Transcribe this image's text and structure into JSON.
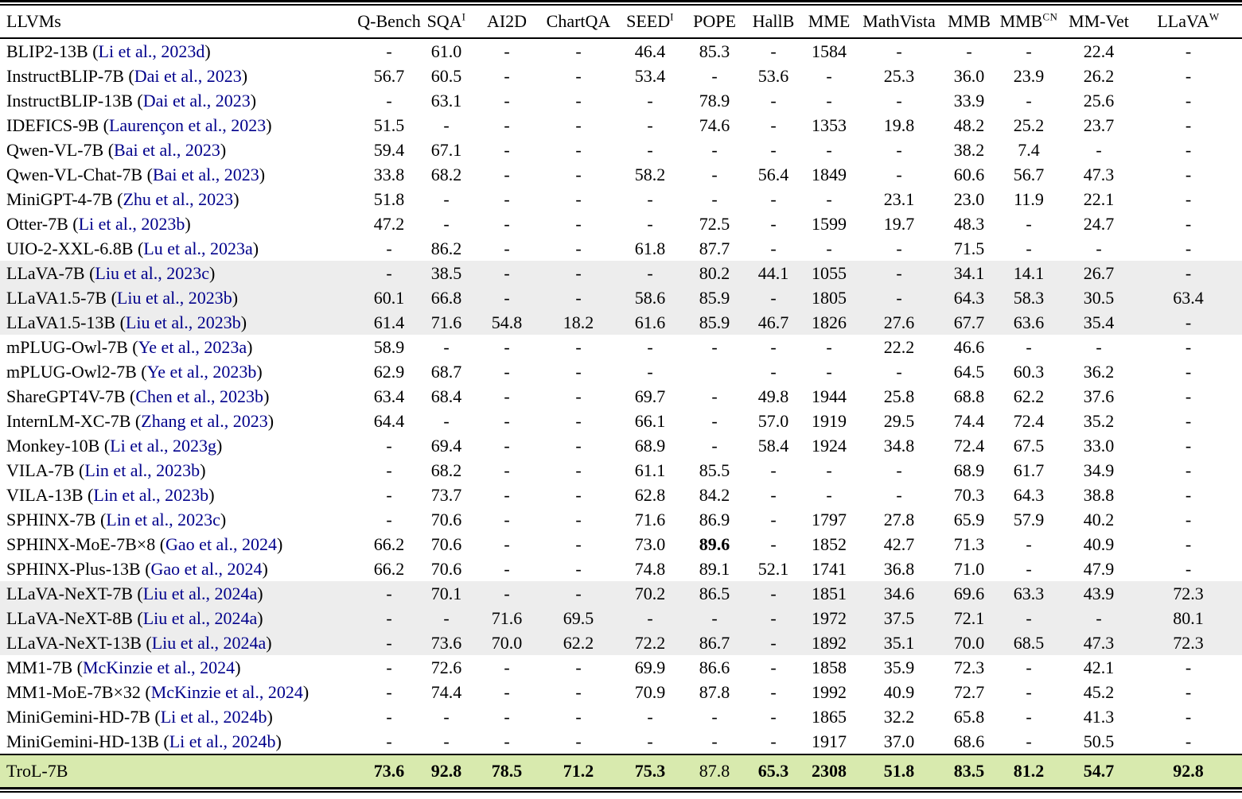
{
  "colors": {
    "citation_link": "#00008B",
    "gray_row": "#ededed",
    "green_row": "#d8eaae"
  },
  "table": {
    "columns": [
      {
        "key": "llvms",
        "label": "LLVMs",
        "sup": ""
      },
      {
        "key": "qbench",
        "label": "Q-Bench",
        "sup": ""
      },
      {
        "key": "sqa",
        "label": "SQA",
        "sup": "I"
      },
      {
        "key": "ai2d",
        "label": "AI2D",
        "sup": ""
      },
      {
        "key": "chartqa",
        "label": "ChartQA",
        "sup": ""
      },
      {
        "key": "seed",
        "label": "SEED",
        "sup": "I"
      },
      {
        "key": "pope",
        "label": "POPE",
        "sup": ""
      },
      {
        "key": "hallb",
        "label": "HallB",
        "sup": ""
      },
      {
        "key": "mme",
        "label": "MME",
        "sup": ""
      },
      {
        "key": "mathvista",
        "label": "MathVista",
        "sup": ""
      },
      {
        "key": "mmb",
        "label": "MMB",
        "sup": ""
      },
      {
        "key": "mmbcn",
        "label": "MMB",
        "sup": "CN"
      },
      {
        "key": "mmvet",
        "label": "MM-Vet",
        "sup": ""
      },
      {
        "key": "llavaw",
        "label": "LLaVA",
        "sup": "W"
      }
    ],
    "rows": [
      {
        "model": "BLIP2-13B",
        "cite": "Li et al., 2023d",
        "shade": "",
        "values": [
          "-",
          "61.0",
          "-",
          "-",
          "46.4",
          "85.3",
          "-",
          "1584",
          "-",
          "-",
          "-",
          "22.4",
          "-"
        ],
        "bold": []
      },
      {
        "model": "InstructBLIP-7B",
        "cite": "Dai et al., 2023",
        "shade": "",
        "values": [
          "56.7",
          "60.5",
          "-",
          "-",
          "53.4",
          "-",
          "53.6",
          "-",
          "25.3",
          "36.0",
          "23.9",
          "26.2",
          "-"
        ],
        "bold": []
      },
      {
        "model": "InstructBLIP-13B",
        "cite": "Dai et al., 2023",
        "shade": "",
        "values": [
          "-",
          "63.1",
          "-",
          "-",
          "-",
          "78.9",
          "-",
          "-",
          "-",
          "33.9",
          "-",
          "25.6",
          "-"
        ],
        "bold": []
      },
      {
        "model": "IDEFICS-9B",
        "cite": "Laurençon et al., 2023",
        "shade": "",
        "values": [
          "51.5",
          "-",
          "-",
          "-",
          "-",
          "74.6",
          "-",
          "1353",
          "19.8",
          "48.2",
          "25.2",
          "23.7",
          "-"
        ],
        "bold": []
      },
      {
        "model": "Qwen-VL-7B",
        "cite": "Bai et al., 2023",
        "shade": "",
        "values": [
          "59.4",
          "67.1",
          "-",
          "-",
          "-",
          "-",
          "-",
          "-",
          "-",
          "38.2",
          "7.4",
          "-",
          "-"
        ],
        "bold": []
      },
      {
        "model": "Qwen-VL-Chat-7B",
        "cite": "Bai et al., 2023",
        "shade": "",
        "values": [
          "33.8",
          "68.2",
          "-",
          "-",
          "58.2",
          "-",
          "56.4",
          "1849",
          "-",
          "60.6",
          "56.7",
          "47.3",
          "-"
        ],
        "bold": []
      },
      {
        "model": "MiniGPT-4-7B",
        "cite": "Zhu et al., 2023",
        "shade": "",
        "values": [
          "51.8",
          "-",
          "-",
          "-",
          "-",
          "-",
          "-",
          "-",
          "23.1",
          "23.0",
          "11.9",
          "22.1",
          "-"
        ],
        "bold": []
      },
      {
        "model": "Otter-7B",
        "cite": "Li et al., 2023b",
        "shade": "",
        "values": [
          "47.2",
          "-",
          "-",
          "-",
          "-",
          "72.5",
          "-",
          "1599",
          "19.7",
          "48.3",
          "-",
          "24.7",
          "-"
        ],
        "bold": []
      },
      {
        "model": "UIO-2-XXL-6.8B",
        "cite": "Lu et al., 2023a",
        "shade": "",
        "values": [
          "-",
          "86.2",
          "-",
          "-",
          "61.8",
          "87.7",
          "-",
          "-",
          "-",
          "71.5",
          "-",
          "-",
          "-"
        ],
        "bold": []
      },
      {
        "model": "LLaVA-7B",
        "cite": "Liu et al., 2023c",
        "shade": "gray",
        "values": [
          "-",
          "38.5",
          "-",
          "-",
          "-",
          "80.2",
          "44.1",
          "1055",
          "-",
          "34.1",
          "14.1",
          "26.7",
          "-"
        ],
        "bold": []
      },
      {
        "model": "LLaVA1.5-7B",
        "cite": "Liu et al., 2023b",
        "shade": "gray",
        "values": [
          "60.1",
          "66.8",
          "-",
          "-",
          "58.6",
          "85.9",
          "-",
          "1805",
          "-",
          "64.3",
          "58.3",
          "30.5",
          "63.4"
        ],
        "bold": []
      },
      {
        "model": "LLaVA1.5-13B",
        "cite": "Liu et al., 2023b",
        "shade": "gray",
        "values": [
          "61.4",
          "71.6",
          "54.8",
          "18.2",
          "61.6",
          "85.9",
          "46.7",
          "1826",
          "27.6",
          "67.7",
          "63.6",
          "35.4",
          "-"
        ],
        "bold": []
      },
      {
        "model": "mPLUG-Owl-7B",
        "cite": "Ye et al., 2023a",
        "shade": "",
        "values": [
          "58.9",
          "-",
          "-",
          "-",
          "-",
          "-",
          "-",
          "-",
          "22.2",
          "46.6",
          "-",
          "-",
          "-"
        ],
        "bold": []
      },
      {
        "model": "mPLUG-Owl2-7B",
        "cite": "Ye et al., 2023b",
        "shade": "",
        "values": [
          "62.9",
          "68.7",
          "-",
          "-",
          "-",
          "",
          "-",
          "-",
          "-",
          "64.5",
          "60.3",
          "36.2",
          "-"
        ],
        "bold": []
      },
      {
        "model": "ShareGPT4V-7B",
        "cite": "Chen et al., 2023b",
        "shade": "",
        "values": [
          "63.4",
          "68.4",
          "-",
          "-",
          "69.7",
          "-",
          "49.8",
          "1944",
          "25.8",
          "68.8",
          "62.2",
          "37.6",
          "-"
        ],
        "bold": []
      },
      {
        "model": "InternLM-XC-7B",
        "cite": "Zhang et al., 2023",
        "shade": "",
        "values": [
          "64.4",
          "-",
          "-",
          "-",
          "66.1",
          "-",
          "57.0",
          "1919",
          "29.5",
          "74.4",
          "72.4",
          "35.2",
          "-"
        ],
        "bold": []
      },
      {
        "model": "Monkey-10B",
        "cite": "Li et al., 2023g",
        "shade": "",
        "values": [
          "-",
          "69.4",
          "-",
          "-",
          "68.9",
          "-",
          "58.4",
          "1924",
          "34.8",
          "72.4",
          "67.5",
          "33.0",
          "-"
        ],
        "bold": []
      },
      {
        "model": "VILA-7B",
        "cite": "Lin et al., 2023b",
        "shade": "",
        "values": [
          "-",
          "68.2",
          "-",
          "-",
          "61.1",
          "85.5",
          "-",
          "-",
          "-",
          "68.9",
          "61.7",
          "34.9",
          "-"
        ],
        "bold": []
      },
      {
        "model": "VILA-13B",
        "cite": "Lin et al., 2023b",
        "shade": "",
        "values": [
          "-",
          "73.7",
          "-",
          "-",
          "62.8",
          "84.2",
          "-",
          "-",
          "-",
          "70.3",
          "64.3",
          "38.8",
          "-"
        ],
        "bold": []
      },
      {
        "model": "SPHINX-7B",
        "cite": "Lin et al., 2023c",
        "shade": "",
        "values": [
          "-",
          "70.6",
          "-",
          "-",
          "71.6",
          "86.9",
          "-",
          "1797",
          "27.8",
          "65.9",
          "57.9",
          "40.2",
          "-"
        ],
        "bold": []
      },
      {
        "model": "SPHINX-MoE-7B×8",
        "cite": "Gao et al., 2024",
        "shade": "",
        "values": [
          "66.2",
          "70.6",
          "-",
          "-",
          "73.0",
          "89.6",
          "-",
          "1852",
          "42.7",
          "71.3",
          "-",
          "40.9",
          "-"
        ],
        "bold": [
          5
        ]
      },
      {
        "model": "SPHINX-Plus-13B",
        "cite": "Gao et al., 2024",
        "shade": "",
        "values": [
          "66.2",
          "70.6",
          "-",
          "-",
          "74.8",
          "89.1",
          "52.1",
          "1741",
          "36.8",
          "71.0",
          "-",
          "47.9",
          "-"
        ],
        "bold": []
      },
      {
        "model": "LLaVA-NeXT-7B",
        "cite": "Liu et al., 2024a",
        "shade": "gray",
        "values": [
          "-",
          "70.1",
          "-",
          "-",
          "70.2",
          "86.5",
          "-",
          "1851",
          "34.6",
          "69.6",
          "63.3",
          "43.9",
          "72.3"
        ],
        "bold": []
      },
      {
        "model": "LLaVA-NeXT-8B",
        "cite": "Liu et al., 2024a",
        "shade": "gray",
        "values": [
          "-",
          "-",
          "71.6",
          "69.5",
          "-",
          "-",
          "-",
          "1972",
          "37.5",
          "72.1",
          "-",
          "-",
          "80.1"
        ],
        "bold": []
      },
      {
        "model": "LLaVA-NeXT-13B",
        "cite": "Liu et al., 2024a",
        "shade": "gray",
        "values": [
          "-",
          "73.6",
          "70.0",
          "62.2",
          "72.2",
          "86.7",
          "-",
          "1892",
          "35.1",
          "70.0",
          "68.5",
          "47.3",
          "72.3"
        ],
        "bold": []
      },
      {
        "model": "MM1-7B",
        "cite": "McKinzie et al., 2024",
        "shade": "",
        "values": [
          "-",
          "72.6",
          "-",
          "-",
          "69.9",
          "86.6",
          "-",
          "1858",
          "35.9",
          "72.3",
          "-",
          "42.1",
          "-"
        ],
        "bold": []
      },
      {
        "model": "MM1-MoE-7B×32",
        "cite": "McKinzie et al., 2024",
        "shade": "",
        "values": [
          "-",
          "74.4",
          "-",
          "-",
          "70.9",
          "87.8",
          "-",
          "1992",
          "40.9",
          "72.7",
          "-",
          "45.2",
          "-"
        ],
        "bold": []
      },
      {
        "model": "MiniGemini-HD-7B",
        "cite": "Li et al., 2024b",
        "shade": "",
        "values": [
          "-",
          "-",
          "-",
          "-",
          "-",
          "-",
          "-",
          "1865",
          "32.2",
          "65.8",
          "-",
          "41.3",
          "-"
        ],
        "bold": []
      },
      {
        "model": "MiniGemini-HD-13B",
        "cite": "Li et al., 2024b",
        "shade": "",
        "values": [
          "-",
          "-",
          "-",
          "-",
          "-",
          "-",
          "-",
          "1917",
          "37.0",
          "68.6",
          "-",
          "50.5",
          "-"
        ],
        "bold": []
      },
      {
        "model": "TroL-7B",
        "cite": "",
        "shade": "green",
        "values": [
          "73.6",
          "92.8",
          "78.5",
          "71.2",
          "75.3",
          "87.8",
          "65.3",
          "2308",
          "51.8",
          "83.5",
          "81.2",
          "54.7",
          "92.8"
        ],
        "bold": [
          0,
          1,
          2,
          3,
          4,
          6,
          7,
          8,
          9,
          10,
          11,
          12
        ]
      }
    ]
  }
}
